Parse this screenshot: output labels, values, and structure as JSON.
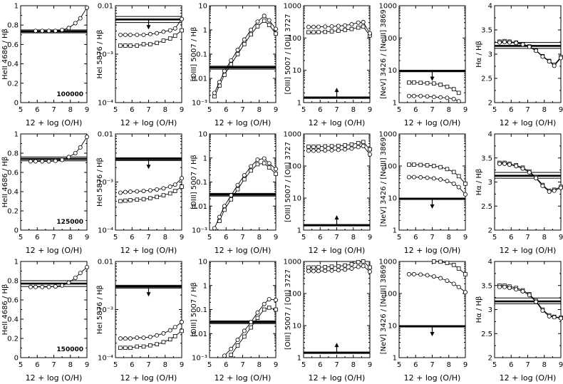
{
  "figure": {
    "xlabel": "12 + log (O/H)",
    "row_labels": [
      "100000",
      "125000",
      "150000"
    ]
  },
  "panels": [
    {
      "ylabel": "HeII 4686 / Hβ",
      "scale": "linear",
      "ylim": [
        0,
        1.0
      ],
      "yticks": [
        0,
        0.2,
        0.4,
        0.6,
        0.8,
        1.0
      ],
      "ytick_labels": [
        "0",
        "0.2",
        "0.4",
        "0.6",
        "0.8",
        "1"
      ]
    },
    {
      "ylabel": "HeI 5876 / Hβ",
      "scale": "log",
      "ylim": [
        0.0001,
        0.01
      ],
      "yticks": [
        0.0001,
        0.001,
        0.01
      ],
      "ytick_labels": [
        "10⁻⁴",
        "10⁻³",
        "0.01"
      ]
    },
    {
      "ylabel": "[OIII] 5007 / Hβ",
      "scale": "log",
      "ylim": [
        0.001,
        10
      ],
      "yticks": [
        0.001,
        0.01,
        0.1,
        1,
        10
      ],
      "ytick_labels": [
        "10⁻³",
        "0.01",
        "0.1",
        "1",
        "10"
      ]
    },
    {
      "ylabel": "[OIII] 5007 / [OII] 3727",
      "scale": "log",
      "ylim": [
        1,
        1000
      ],
      "yticks": [
        1,
        10,
        100,
        1000
      ],
      "ytick_labels": [
        "1",
        "10",
        "100",
        "1000"
      ]
    },
    {
      "ylabel": "[NeV] 3426 / [NeIII] 3869",
      "scale": "log",
      "ylim": [
        1,
        1000
      ],
      "yticks": [
        1,
        10,
        100,
        1000
      ],
      "ytick_labels": [
        "1",
        "10",
        "100",
        "1000"
      ]
    },
    {
      "ylabel": "Hα / Hβ",
      "scale": "linear",
      "ylim": [
        2,
        4
      ],
      "yticks": [
        2,
        2.5,
        3,
        3.5,
        4
      ],
      "ytick_labels": [
        "2",
        "2.5",
        "3",
        "3.5",
        "4"
      ]
    }
  ],
  "chart_data": {
    "type": "line",
    "xlim": [
      5,
      9
    ],
    "xticks": [
      5,
      6,
      7,
      8,
      9
    ],
    "x": [
      5.3,
      5.6,
      5.9,
      6.3,
      6.7,
      7.1,
      7.5,
      7.9,
      8.3,
      8.6,
      9.0
    ],
    "rows": [
      [
        {
          "obs": [
            0.72,
            0.735,
            0.75
          ],
          "arrow": null,
          "circles": [
            null,
            null,
            0.74,
            0.74,
            0.74,
            0.74,
            0.75,
            0.77,
            0.82,
            0.87,
            0.98
          ],
          "squares": []
        },
        {
          "obs": [
            0.0045,
            0.0052,
            0.006
          ],
          "arrow": "down",
          "circles": [
            0.0025,
            0.0025,
            0.0025,
            0.0025,
            0.0025,
            0.0026,
            0.0027,
            0.0029,
            0.0031,
            0.0034,
            0.0053
          ],
          "squares": [
            0.0015,
            0.0015,
            0.0015,
            0.0015,
            0.0016,
            0.0016,
            0.0017,
            0.0019,
            0.0021,
            0.0024,
            0.0031
          ]
        },
        {
          "obs": [
            0.024,
            0.028,
            0.032
          ],
          "arrow": null,
          "circles": [
            0.0025,
            0.007,
            0.02,
            0.055,
            0.15,
            0.4,
            1.0,
            2.2,
            3.8,
            2.5,
            1.1
          ],
          "squares": [
            0.0018,
            0.005,
            0.014,
            0.038,
            0.1,
            0.26,
            0.65,
            1.4,
            2.4,
            1.6,
            0.7
          ]
        },
        {
          "obs": [
            1.35,
            1.42,
            1.5
          ],
          "arrow": "up",
          "circles": [
            220,
            220,
            222,
            225,
            228,
            235,
            245,
            265,
            300,
            310,
            140
          ],
          "squares": [
            150,
            150,
            152,
            155,
            160,
            168,
            178,
            190,
            210,
            225,
            120
          ]
        },
        {
          "obs": [
            9.0,
            9.5,
            10.0
          ],
          "arrow": "down",
          "circles": [
            null,
            1.6,
            1.6,
            1.6,
            1.55,
            1.5,
            1.45,
            1.4,
            1.3,
            1.1,
            null
          ],
          "squares": [
            null,
            4.2,
            4.2,
            4.1,
            4.0,
            3.9,
            3.6,
            3.1,
            2.6,
            2.0,
            null
          ]
        },
        {
          "obs": [
            3.12,
            3.17,
            3.24
          ],
          "arrow": null,
          "circles": [
            3.24,
            3.25,
            3.24,
            3.23,
            3.2,
            3.15,
            3.07,
            2.95,
            2.85,
            2.76,
            2.92
          ],
          "squares": [
            3.26,
            3.27,
            3.26,
            3.24,
            3.21,
            3.16,
            3.08,
            2.96,
            2.86,
            2.78,
            2.94
          ]
        }
      ],
      [
        {
          "obs": [
            0.72,
            0.74,
            0.76
          ],
          "arrow": null,
          "circles": [
            null,
            0.715,
            0.715,
            0.715,
            0.715,
            0.72,
            0.73,
            0.76,
            0.8,
            0.86,
            0.97
          ],
          "squares": []
        },
        {
          "obs": [
            0.0028,
            0.003,
            0.0032
          ],
          "arrow": "down",
          "circles": [
            0.0006,
            0.00062,
            0.00063,
            0.00064,
            0.00065,
            0.00067,
            0.0007,
            0.00074,
            0.0008,
            0.00088,
            0.0012
          ],
          "squares": [
            0.0004,
            0.00041,
            0.00042,
            0.00043,
            0.00044,
            0.00046,
            0.00049,
            0.00053,
            0.00058,
            0.00065,
            0.0008
          ]
        },
        {
          "obs": [
            0.026,
            0.03,
            0.034
          ],
          "arrow": null,
          "circles": [
            0.0012,
            0.0035,
            0.01,
            0.028,
            0.075,
            0.19,
            0.45,
            0.85,
            0.95,
            0.6,
            0.35
          ],
          "squares": [
            0.0008,
            0.0024,
            0.007,
            0.019,
            0.05,
            0.13,
            0.3,
            0.55,
            0.6,
            0.4,
            0.22
          ]
        },
        {
          "obs": [
            1.35,
            1.42,
            1.5
          ],
          "arrow": "up",
          "circles": [
            300,
            300,
            302,
            305,
            310,
            318,
            330,
            350,
            390,
            420,
            230
          ],
          "squares": [
            400,
            400,
            405,
            410,
            415,
            425,
            440,
            470,
            520,
            560,
            330
          ]
        },
        {
          "obs": [
            9.0,
            9.5,
            10.0
          ],
          "arrow": "down",
          "circles": [
            null,
            45,
            45,
            44,
            43,
            41,
            38,
            34,
            28,
            22,
            13
          ],
          "squares": [
            null,
            110,
            110,
            108,
            105,
            100,
            92,
            80,
            65,
            48,
            28
          ]
        },
        {
          "obs": [
            3.08,
            3.13,
            3.2
          ],
          "arrow": null,
          "circles": [
            3.38,
            3.38,
            3.36,
            3.33,
            3.28,
            3.2,
            3.08,
            2.92,
            2.8,
            2.82,
            2.88
          ],
          "squares": [
            3.4,
            3.4,
            3.38,
            3.35,
            3.3,
            3.22,
            3.1,
            2.94,
            2.82,
            2.84,
            2.9
          ]
        }
      ],
      [
        {
          "obs": [
            0.74,
            0.77,
            0.8
          ],
          "arrow": null,
          "circles": [
            null,
            0.735,
            0.735,
            0.735,
            0.735,
            0.74,
            0.75,
            0.78,
            0.83,
            0.88,
            0.94
          ],
          "squares": []
        },
        {
          "obs": [
            0.0028,
            0.003,
            0.0032
          ],
          "arrow": "down",
          "circles": [
            0.00025,
            0.00025,
            0.00025,
            0.00026,
            0.00026,
            0.00027,
            0.00029,
            0.00032,
            0.00037,
            0.00043,
            0.00055
          ],
          "squares": [
            0.00016,
            0.00016,
            0.00016,
            0.00017,
            0.00017,
            0.00018,
            0.00019,
            0.00021,
            0.00024,
            0.00028,
            0.00036
          ]
        },
        {
          "obs": [
            0.026,
            0.03,
            0.034
          ],
          "arrow": null,
          "circles": [
            null,
            null,
            0.0012,
            0.0023,
            0.0055,
            0.013,
            0.03,
            0.075,
            0.17,
            0.27,
            0.25
          ],
          "squares": [
            null,
            null,
            null,
            0.0013,
            0.0032,
            0.0075,
            0.018,
            0.045,
            0.1,
            0.12,
            0.1
          ]
        },
        {
          "obs": [
            1.35,
            1.42,
            1.5
          ],
          "arrow": "up",
          "circles": [
            500,
            500,
            505,
            510,
            520,
            535,
            560,
            600,
            680,
            720,
            480
          ],
          "squares": [
            650,
            650,
            660,
            670,
            690,
            710,
            750,
            820,
            950,
            1000,
            650
          ]
        },
        {
          "obs": [
            9.0,
            9.5,
            10.0
          ],
          "arrow": "down",
          "circles": [
            null,
            400,
            400,
            390,
            370,
            340,
            300,
            250,
            200,
            160,
            110
          ],
          "squares": [
            null,
            null,
            null,
            null,
            null,
            1000,
            980,
            900,
            780,
            600,
            400
          ]
        },
        {
          "obs": [
            3.12,
            3.17,
            3.24
          ],
          "arrow": null,
          "circles": [
            3.47,
            3.47,
            3.45,
            3.42,
            3.38,
            3.3,
            3.16,
            2.98,
            2.86,
            2.84,
            2.82
          ],
          "squares": [
            3.5,
            3.5,
            3.48,
            3.45,
            3.4,
            3.32,
            3.18,
            3.0,
            2.88,
            2.85,
            2.83
          ]
        }
      ]
    ]
  }
}
